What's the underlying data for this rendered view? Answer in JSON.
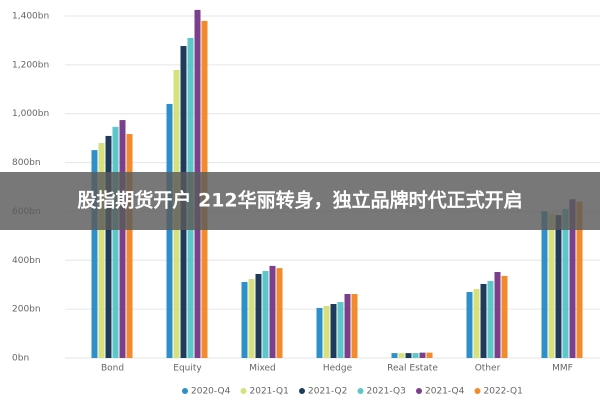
{
  "chart_data": {
    "type": "bar",
    "categories": [
      "Bond",
      "Equity",
      "Mixed",
      "Hedge",
      "Real Estate",
      "Other",
      "MMF"
    ],
    "series": [
      {
        "name": "2020-Q4",
        "color": "#2e8fc9",
        "values": [
          851,
          1040,
          311,
          205,
          20,
          270,
          600
        ]
      },
      {
        "name": "2021-Q1",
        "color": "#d6e07c",
        "values": [
          880,
          1179,
          323,
          213,
          20,
          282,
          590
        ]
      },
      {
        "name": "2021-Q2",
        "color": "#1f3b5c",
        "values": [
          909,
          1277,
          344,
          221,
          20,
          303,
          585
        ]
      },
      {
        "name": "2021-Q3",
        "color": "#5cc6c8",
        "values": [
          946,
          1310,
          356,
          229,
          20,
          315,
          610
        ]
      },
      {
        "name": "2021-Q4",
        "color": "#7b3f8c",
        "values": [
          974,
          1425,
          377,
          262,
          22,
          352,
          650
        ]
      },
      {
        "name": "2022-Q1",
        "color": "#f28a2e",
        "values": [
          917,
          1380,
          368,
          262,
          22,
          336,
          640
        ]
      }
    ],
    "ylim": [
      0,
      1400
    ],
    "yticks": [
      {
        "value": 0,
        "label": "0bn"
      },
      {
        "value": 200,
        "label": "200bn"
      },
      {
        "value": 400,
        "label": "400bn"
      },
      {
        "value": 600,
        "label": "600bn"
      },
      {
        "value": 800,
        "label": "800bn"
      },
      {
        "value": 1000,
        "label": "1,000bn"
      },
      {
        "value": 1200,
        "label": "1,200bn"
      },
      {
        "value": 1400,
        "label": "1,400bn"
      }
    ],
    "grid": true
  },
  "banner": {
    "text": "股指期货开户 212华丽转身，独立品牌时代正式开启"
  }
}
